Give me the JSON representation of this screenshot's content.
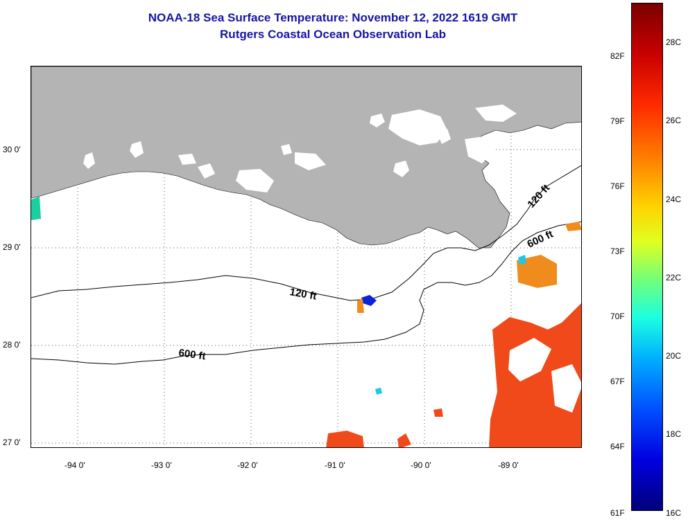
{
  "title": {
    "line1": "NOAA-18 Sea Surface Temperature:  November 12, 2022 1619 GMT",
    "line2": "Rutgers Coastal Ocean Observation Lab"
  },
  "map": {
    "lat_labels": [
      "30 0'",
      "29 0'",
      "28 0'",
      "27 0'"
    ],
    "lon_labels": [
      "-94 0'",
      "-93 0'",
      "-92 0'",
      "-91 0'",
      "-90 0'",
      "-89 0'"
    ],
    "contour_labels": {
      "inner_shelf_west": "120 ft",
      "inner_shelf_east": "120 ft",
      "outer_shelf_west": "600 ft",
      "outer_shelf_east": "600 ft"
    },
    "colors": {
      "land": "#b4b4b4",
      "title": "#1515a6",
      "warm_water": "#f04a1a",
      "orange_water": "#f08c1e"
    }
  },
  "colorbar": {
    "fahrenheit_labels": [
      "82F",
      "79F",
      "76F",
      "73F",
      "70F",
      "67F",
      "64F",
      "61F"
    ],
    "celsius_labels": [
      "28C",
      "26C",
      "24C",
      "22C",
      "20C",
      "18C",
      "16C"
    ]
  }
}
